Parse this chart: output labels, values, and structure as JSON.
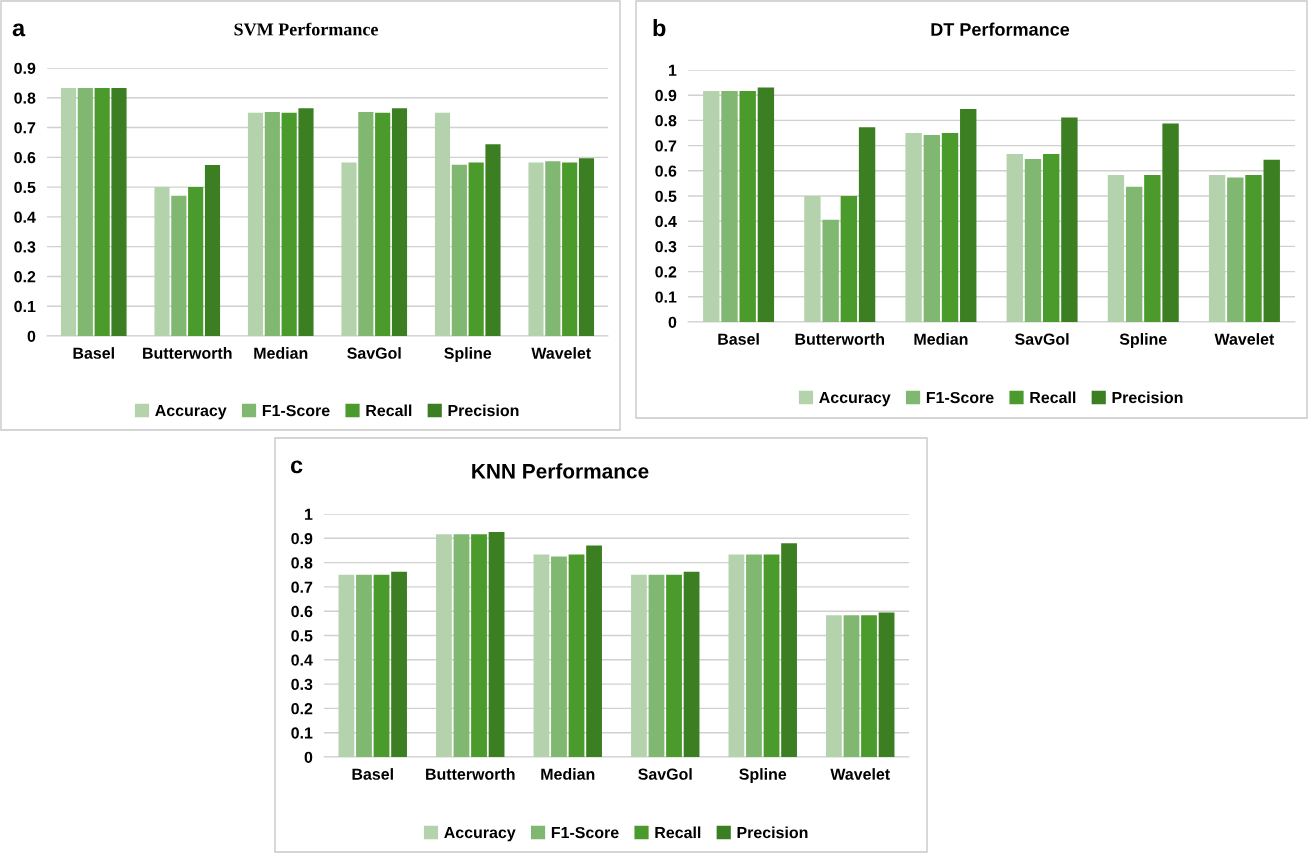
{
  "chart_data": [
    {
      "type": "bar",
      "title": "SVM Performance",
      "annotations": [
        "a"
      ],
      "categories": [
        "Basel",
        "Butterworth",
        "Median",
        "SavGol",
        "Spline",
        "Wavelet"
      ],
      "ylim": [
        0,
        0.9
      ],
      "yticks": [
        0,
        0.1,
        0.2,
        0.3,
        0.4,
        0.5,
        0.6,
        0.7,
        0.8,
        0.9
      ],
      "grid": "y",
      "legend": "bottom",
      "series": [
        {
          "name": "Accuracy",
          "color": "#b4d3ad",
          "values": [
            0.833,
            0.5,
            0.75,
            0.583,
            0.75,
            0.583
          ]
        },
        {
          "name": "F1-Score",
          "color": "#80b771",
          "values": [
            0.833,
            0.471,
            0.752,
            0.752,
            0.575,
            0.587
          ]
        },
        {
          "name": "Recall",
          "color": "#4a9a2c",
          "values": [
            0.833,
            0.5,
            0.75,
            0.75,
            0.583,
            0.583
          ]
        },
        {
          "name": "Precision",
          "color": "#3b7f22",
          "values": [
            0.833,
            0.574,
            0.765,
            0.765,
            0.644,
            0.597
          ]
        }
      ]
    },
    {
      "type": "bar",
      "title": "DT Performance",
      "annotations": [
        "b"
      ],
      "categories": [
        "Basel",
        "Butterworth",
        "Median",
        "SavGol",
        "Spline",
        "Wavelet"
      ],
      "ylim": [
        0,
        1
      ],
      "yticks": [
        0,
        0.1,
        0.2,
        0.3,
        0.4,
        0.5,
        0.6,
        0.7,
        0.8,
        0.9,
        1
      ],
      "grid": "y",
      "legend": "bottom",
      "series": [
        {
          "name": "Accuracy",
          "color": "#b4d3ad",
          "values": [
            0.917,
            0.5,
            0.75,
            0.667,
            0.583,
            0.583
          ]
        },
        {
          "name": "F1-Score",
          "color": "#80b771",
          "values": [
            0.917,
            0.406,
            0.742,
            0.647,
            0.537,
            0.573
          ]
        },
        {
          "name": "Recall",
          "color": "#4a9a2c",
          "values": [
            0.917,
            0.5,
            0.75,
            0.667,
            0.583,
            0.583
          ]
        },
        {
          "name": "Precision",
          "color": "#3b7f22",
          "values": [
            0.931,
            0.773,
            0.845,
            0.812,
            0.788,
            0.644
          ]
        }
      ]
    },
    {
      "type": "bar",
      "title": "KNN Performance",
      "annotations": [
        "c"
      ],
      "categories": [
        "Basel",
        "Butterworth",
        "Median",
        "SavGol",
        "Spline",
        "Wavelet"
      ],
      "ylim": [
        0,
        1
      ],
      "yticks": [
        0,
        0.1,
        0.2,
        0.3,
        0.4,
        0.5,
        0.6,
        0.7,
        0.8,
        0.9,
        1
      ],
      "grid": "y",
      "legend": "bottom",
      "series": [
        {
          "name": "Accuracy",
          "color": "#b4d3ad",
          "values": [
            0.75,
            0.917,
            0.833,
            0.75,
            0.833,
            0.583
          ]
        },
        {
          "name": "F1-Score",
          "color": "#80b771",
          "values": [
            0.75,
            0.917,
            0.825,
            0.75,
            0.833,
            0.583
          ]
        },
        {
          "name": "Recall",
          "color": "#4a9a2c",
          "values": [
            0.75,
            0.917,
            0.833,
            0.75,
            0.833,
            0.583
          ]
        },
        {
          "name": "Precision",
          "color": "#3b7f22",
          "values": [
            0.762,
            0.926,
            0.87,
            0.762,
            0.88,
            0.595
          ]
        }
      ]
    }
  ]
}
